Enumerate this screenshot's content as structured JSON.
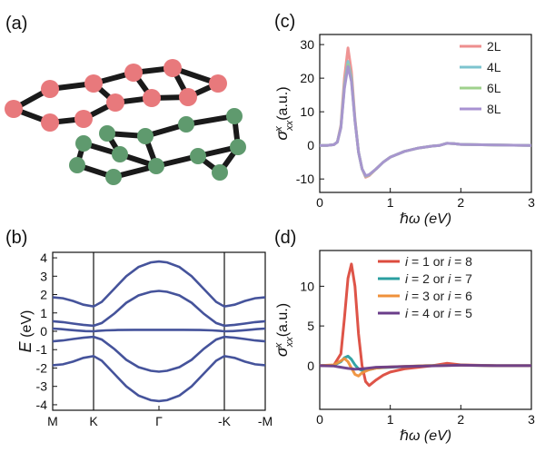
{
  "panels": {
    "a": {
      "label": "(a)"
    },
    "b": {
      "label": "(b)"
    },
    "c": {
      "label": "(c)"
    },
    "d": {
      "label": "(d)"
    }
  },
  "lattice": {
    "top_layer_color": "#e8797c",
    "bottom_layer_color": "#5f9a6e",
    "bond_color": "#1a1a1a"
  },
  "chart_data": [
    {
      "id": "b",
      "type": "line",
      "ylabel_var": "E",
      "ylabel_unit": " (eV)",
      "xlabel": "",
      "ylim": [
        -4.3,
        4.3
      ],
      "yticks": [
        4,
        3,
        2,
        1,
        0,
        -1,
        -2,
        -3,
        -4
      ],
      "x_labels": [
        "M",
        "K",
        "Γ",
        "-K",
        "-M"
      ],
      "x_positions": [
        0,
        1,
        2.6,
        4.2,
        5.2
      ],
      "grid": false,
      "color": "#45539b",
      "series": [
        {
          "x": [
            0,
            0.25,
            0.5,
            0.75,
            1,
            1.2,
            1.5,
            1.8,
            2.1,
            2.4,
            2.6,
            2.8,
            3.1,
            3.4,
            3.7,
            4.0,
            4.2,
            4.45,
            4.7,
            4.95,
            5.2
          ],
          "y": [
            1.85,
            1.8,
            1.65,
            1.45,
            1.35,
            1.6,
            2.3,
            3.0,
            3.5,
            3.75,
            3.8,
            3.75,
            3.5,
            3.0,
            2.3,
            1.6,
            1.35,
            1.45,
            1.65,
            1.8,
            1.85
          ]
        },
        {
          "x": [
            0,
            0.25,
            0.5,
            0.75,
            1,
            1.2,
            1.5,
            1.8,
            2.1,
            2.4,
            2.6,
            2.8,
            3.1,
            3.4,
            3.7,
            4.0,
            4.2,
            4.45,
            4.7,
            4.95,
            5.2
          ],
          "y": [
            0.55,
            0.5,
            0.42,
            0.35,
            0.3,
            0.45,
            0.95,
            1.55,
            1.95,
            2.15,
            2.2,
            2.15,
            1.95,
            1.55,
            0.95,
            0.45,
            0.3,
            0.35,
            0.42,
            0.5,
            0.55
          ]
        },
        {
          "x": [
            0,
            0.25,
            0.5,
            0.75,
            1,
            1.2,
            1.5,
            1.8,
            2.1,
            2.4,
            2.6,
            2.8,
            3.1,
            3.4,
            3.7,
            4.0,
            4.2,
            4.45,
            4.7,
            4.95,
            5.2
          ],
          "y": [
            -0.55,
            -0.5,
            -0.42,
            -0.35,
            -0.3,
            -0.45,
            -0.95,
            -1.55,
            -1.95,
            -2.15,
            -2.2,
            -2.15,
            -1.95,
            -1.55,
            -0.95,
            -0.45,
            -0.3,
            -0.35,
            -0.42,
            -0.5,
            -0.55
          ]
        },
        {
          "x": [
            0,
            0.25,
            0.5,
            0.75,
            1,
            1.2,
            1.5,
            1.8,
            2.1,
            2.4,
            2.6,
            2.8,
            3.1,
            3.4,
            3.7,
            4.0,
            4.2,
            4.45,
            4.7,
            4.95,
            5.2
          ],
          "y": [
            -1.85,
            -1.8,
            -1.65,
            -1.45,
            -1.35,
            -1.6,
            -2.3,
            -3.0,
            -3.5,
            -3.75,
            -3.8,
            -3.75,
            -3.5,
            -3.0,
            -2.3,
            -1.6,
            -1.35,
            -1.45,
            -1.65,
            -1.8,
            -1.85
          ]
        },
        {
          "x": [
            0,
            0.2,
            0.4,
            0.6,
            0.8,
            1,
            1.1,
            1.3,
            1.6,
            2.0,
            2.6,
            3.2,
            3.6,
            3.9,
            4.1,
            4.2,
            4.4,
            4.6,
            4.8,
            5.0,
            5.2
          ],
          "y": [
            0.15,
            0.12,
            0.08,
            0.04,
            0.01,
            0.0,
            0.02,
            0.05,
            0.07,
            0.08,
            0.08,
            0.08,
            0.07,
            0.05,
            0.02,
            0.0,
            0.01,
            0.04,
            0.08,
            0.12,
            0.15
          ]
        }
      ]
    },
    {
      "id": "c",
      "type": "line",
      "xlabel": "ℏω (eV)",
      "ylabel": "σ",
      "ylabel_sub": "xx",
      "ylabel_sup": "x",
      "ylabel_unit": " (a.u.)",
      "xlim": [
        0,
        3
      ],
      "ylim": [
        -14,
        33
      ],
      "xticks": [
        0,
        1,
        2,
        3
      ],
      "yticks": [
        30,
        20,
        10,
        0,
        -10
      ],
      "grid": false,
      "legend": "top-right",
      "series": [
        {
          "name": "2L",
          "color": "#ee8e8e",
          "x": [
            0,
            0.1,
            0.2,
            0.25,
            0.3,
            0.35,
            0.4,
            0.45,
            0.5,
            0.55,
            0.6,
            0.65,
            0.7,
            0.8,
            0.9,
            1.0,
            1.2,
            1.4,
            1.6,
            1.7,
            1.8,
            1.9,
            2.0,
            2.5,
            3.0
          ],
          "y": [
            0,
            0,
            0.2,
            1,
            6,
            20,
            29,
            22,
            8,
            -2,
            -7,
            -9.5,
            -9,
            -7,
            -5,
            -3.5,
            -1.8,
            -0.8,
            -0.2,
            0,
            0.6,
            0.5,
            0.3,
            0.1,
            0
          ]
        },
        {
          "name": "4L",
          "color": "#7dc4cf",
          "x": [
            0,
            0.1,
            0.2,
            0.25,
            0.3,
            0.35,
            0.4,
            0.45,
            0.5,
            0.55,
            0.6,
            0.65,
            0.7,
            0.8,
            0.9,
            1.0,
            1.2,
            1.4,
            1.6,
            1.7,
            1.8,
            1.9,
            2.0,
            2.5,
            3.0
          ],
          "y": [
            0,
            0,
            0.2,
            1,
            5.5,
            18,
            25,
            20,
            7.5,
            -2,
            -7,
            -9.2,
            -8.8,
            -7,
            -5,
            -3.5,
            -1.8,
            -0.8,
            -0.2,
            0,
            0.6,
            0.5,
            0.3,
            0.1,
            0
          ]
        },
        {
          "name": "6L",
          "color": "#9fd18c",
          "x": [
            0,
            0.1,
            0.2,
            0.25,
            0.3,
            0.35,
            0.4,
            0.45,
            0.5,
            0.55,
            0.6,
            0.65,
            0.7,
            0.8,
            0.9,
            1.0,
            1.2,
            1.4,
            1.6,
            1.7,
            1.8,
            1.9,
            2.0,
            2.5,
            3.0
          ],
          "y": [
            0,
            0,
            0.2,
            1,
            5.3,
            17.5,
            24,
            19.5,
            7.3,
            -2,
            -7,
            -9.1,
            -8.8,
            -7,
            -5,
            -3.5,
            -1.8,
            -0.8,
            -0.2,
            0,
            0.6,
            0.5,
            0.3,
            0.1,
            0
          ]
        },
        {
          "name": "8L",
          "color": "#a892d2",
          "x": [
            0,
            0.1,
            0.2,
            0.25,
            0.3,
            0.35,
            0.4,
            0.45,
            0.5,
            0.55,
            0.6,
            0.65,
            0.7,
            0.8,
            0.9,
            1.0,
            1.2,
            1.4,
            1.6,
            1.7,
            1.8,
            1.9,
            2.0,
            2.5,
            3.0
          ],
          "y": [
            0,
            0,
            0.2,
            1,
            5.2,
            17,
            23.5,
            19,
            7.2,
            -2,
            -7,
            -9,
            -8.7,
            -7,
            -5,
            -3.5,
            -1.8,
            -0.8,
            -0.2,
            0,
            0.6,
            0.5,
            0.3,
            0.1,
            0
          ]
        }
      ]
    },
    {
      "id": "d",
      "type": "line",
      "xlabel": "ℏω (eV)",
      "ylabel": "σ",
      "ylabel_sub": "xx",
      "ylabel_sup": "x",
      "ylabel_unit": " (a.u.)",
      "xlim": [
        0,
        3
      ],
      "ylim": [
        -5.5,
        14.5
      ],
      "xticks": [
        0,
        1,
        2,
        3
      ],
      "yticks": [
        10,
        5,
        0
      ],
      "grid": false,
      "legend": "top-right",
      "series": [
        {
          "name": "i = 1 or i = 8",
          "legend_parts": [
            "i",
            " = 1 or ",
            "i",
            " = 8"
          ],
          "color": "#dc4b3e",
          "x": [
            0,
            0.2,
            0.3,
            0.35,
            0.4,
            0.45,
            0.5,
            0.55,
            0.6,
            0.65,
            0.7,
            0.8,
            0.9,
            1.0,
            1.2,
            1.4,
            1.6,
            1.8,
            1.9,
            2.0,
            2.5,
            3.0
          ],
          "y": [
            0,
            0.05,
            1.5,
            6,
            11,
            12.8,
            10,
            4,
            0,
            -2,
            -2.5,
            -1.8,
            -1.2,
            -0.8,
            -0.4,
            -0.2,
            0,
            0.3,
            0.2,
            0.1,
            0,
            0
          ]
        },
        {
          "name": "i = 2 or i = 7",
          "legend_parts": [
            "i",
            " = 2 or ",
            "i",
            " = 7"
          ],
          "color": "#2a9fa0",
          "x": [
            0,
            0.2,
            0.3,
            0.35,
            0.4,
            0.45,
            0.5,
            0.55,
            0.6,
            0.7,
            0.8,
            1.0,
            1.5,
            2.0,
            2.5,
            3.0
          ],
          "y": [
            0,
            0.05,
            0.5,
            1.0,
            1.2,
            0.8,
            0.1,
            -0.4,
            -0.6,
            -0.5,
            -0.3,
            -0.2,
            0,
            0.05,
            0,
            0
          ]
        },
        {
          "name": "i = 3 or i = 6",
          "legend_parts": [
            "i",
            " = 3 or ",
            "i",
            " = 6"
          ],
          "color": "#ef913b",
          "x": [
            0,
            0.2,
            0.3,
            0.35,
            0.4,
            0.45,
            0.5,
            0.55,
            0.6,
            0.7,
            0.8,
            1.0,
            1.5,
            2.0,
            2.5,
            3.0
          ],
          "y": [
            0,
            0.1,
            0.6,
            0.9,
            0.5,
            -0.3,
            -1.1,
            -1.3,
            -0.9,
            -0.5,
            -0.3,
            -0.15,
            0,
            0.05,
            0,
            0
          ]
        },
        {
          "name": "i = 4 or i = 5",
          "legend_parts": [
            "i",
            " = 4 or ",
            "i",
            " = 5"
          ],
          "color": "#6a3d8a",
          "x": [
            0,
            0.2,
            0.3,
            0.4,
            0.5,
            0.6,
            0.7,
            0.8,
            1.0,
            1.2,
            1.5,
            2.0,
            2.5,
            3.0
          ],
          "y": [
            0,
            -0.05,
            -0.2,
            -0.35,
            -0.45,
            -0.4,
            -0.3,
            -0.2,
            -0.15,
            -0.1,
            -0.05,
            0.05,
            0,
            0
          ]
        }
      ]
    }
  ]
}
